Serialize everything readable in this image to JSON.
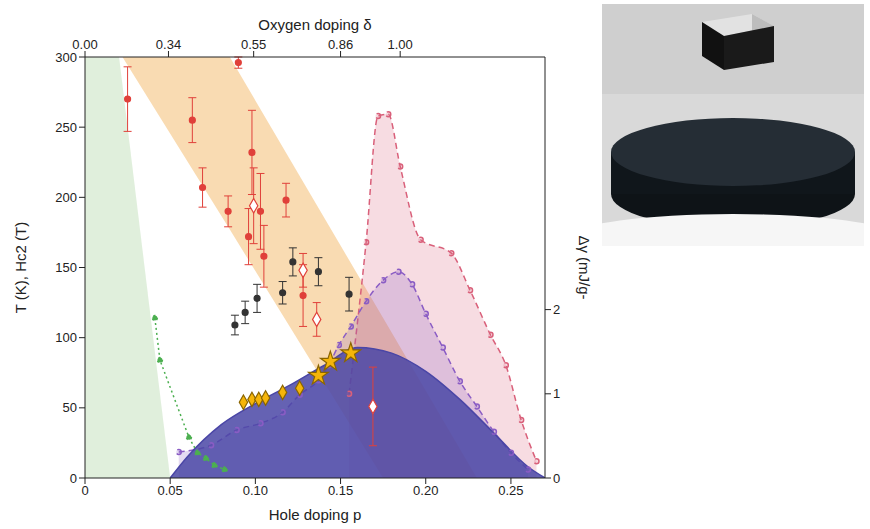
{
  "chart_data": {
    "type": "scatter",
    "xlabel": "Hole doping p",
    "ylabel": "T (K), Hc2 (T)",
    "y2label": "Δγ (mJ/g-",
    "xlim": [
      0,
      0.27
    ],
    "xticks": [
      0,
      0.05,
      {
        "value": 0.1,
        "label": "0.10"
      },
      0.15,
      {
        "value": 0.2,
        "label": "0.20"
      },
      0.25
    ],
    "ylim": [
      0,
      300
    ],
    "yticks": [
      0,
      50,
      100,
      150,
      200,
      250,
      300
    ],
    "y2lim": [
      0,
      5
    ],
    "y2ticks": [
      0,
      1,
      2
    ],
    "x2": {
      "label": "Oxygen doping δ",
      "ticks": [
        {
          "value": 0,
          "label": "0.00"
        },
        0.34,
        0.55,
        0.86,
        {
          "value": 1,
          "label": "1.00"
        }
      ],
      "p_positions": [
        0,
        0.049,
        0.099,
        0.15,
        0.185
      ]
    },
    "grid": false,
    "series": [
      {
        "type": "band",
        "color": "#d5ead0",
        "x": [
          0,
          0.02,
          0.05
        ],
        "low": [
          0,
          0,
          0
        ],
        "high": [
          300,
          300,
          0
        ]
      },
      {
        "type": "band",
        "color": "#f7cf98",
        "x": [
          0.022,
          0.085,
          0.175,
          0.23
        ],
        "low": [
          300,
          177,
          0,
          0
        ],
        "high": [
          300,
          300,
          114,
          0
        ]
      },
      {
        "type": "area",
        "axis": "y2",
        "color": "#d9607a",
        "line_style": "dashed",
        "marker": "circle",
        "x": [
          0.155,
          0.165,
          0.172,
          0.178,
          0.185,
          0.197,
          0.215,
          0.226,
          0.238,
          0.247,
          0.256,
          0.265
        ],
        "values": [
          1.0,
          2.8,
          4.3,
          4.32,
          3.7,
          2.83,
          2.67,
          2.23,
          1.7,
          1.34,
          0.69,
          0.2
        ]
      },
      {
        "type": "area",
        "axis": "y2",
        "color": "#8a5cc4",
        "line_style": "dashed",
        "marker": "circle",
        "x": [
          0.055,
          0.074,
          0.089,
          0.103,
          0.116,
          0.126,
          0.137,
          0.143,
          0.149,
          0.156,
          0.165,
          0.175,
          0.184,
          0.192,
          0.2,
          0.21,
          0.22,
          0.23,
          0.24,
          0.25,
          0.26
        ],
        "values": [
          0.31,
          0.39,
          0.57,
          0.65,
          0.78,
          0.99,
          1.16,
          1.34,
          1.58,
          1.8,
          2.1,
          2.35,
          2.45,
          2.3,
          1.95,
          1.55,
          1.15,
          0.85,
          0.55,
          0.3,
          0.1
        ]
      },
      {
        "type": "area",
        "color": "#4a46a6",
        "line_style": "solid",
        "x": [
          0.05,
          0.06,
          0.08,
          0.1,
          0.12,
          0.14,
          0.16,
          0.18,
          0.2,
          0.22,
          0.24,
          0.26,
          0.27
        ],
        "values": [
          0,
          15,
          38,
          53,
          66,
          80,
          93,
          89,
          76,
          56,
          32,
          8,
          0
        ]
      },
      {
        "type": "line",
        "color": "#4caf50",
        "line_style": "dotted",
        "marker": "circle",
        "x": [
          0.041,
          0.044,
          0.061,
          0.066,
          0.071,
          0.076,
          0.082
        ],
        "values": [
          114,
          84,
          29,
          18,
          14,
          9,
          6
        ]
      },
      {
        "type": "scatter",
        "color": "#e0403a",
        "marker": "circle",
        "x": [
          0.025,
          0.063,
          0.069,
          0.084,
          0.09,
          0.096,
          0.098,
          0.103,
          0.105,
          0.118,
          0.128
        ],
        "values": [
          270,
          255,
          207,
          190,
          296,
          172,
          232,
          190,
          158,
          198,
          130
        ],
        "errors": [
          23,
          16,
          14,
          11,
          4,
          20,
          30,
          27,
          22,
          12,
          22
        ]
      },
      {
        "type": "scatter",
        "color": "#e0403a",
        "marker": "open_diamond",
        "x": [
          0.099,
          0.128,
          0.136,
          0.169
        ],
        "values": [
          194,
          148,
          113,
          51
        ],
        "errors": [
          27,
          12,
          12,
          28
        ]
      },
      {
        "type": "scatter",
        "color": "#333333",
        "marker": "circle",
        "x": [
          0.088,
          0.094,
          0.101,
          0.116,
          0.122,
          0.137,
          0.155
        ],
        "values": [
          109,
          118,
          128,
          132,
          154,
          147,
          131
        ],
        "errors": [
          7,
          8,
          10,
          8,
          10,
          10,
          12
        ]
      },
      {
        "type": "scatter",
        "color": "#f5b50a",
        "marker": "diamond",
        "x": [
          0.093,
          0.098,
          0.102,
          0.106,
          0.116,
          0.126
        ],
        "values": [
          54,
          56,
          56,
          57,
          61,
          64
        ]
      },
      {
        "type": "scatter",
        "color": "#f5b50a",
        "marker": "star",
        "x": [
          0.137,
          0.144,
          0.156
        ],
        "values": [
          73,
          83,
          89
        ]
      }
    ]
  }
}
